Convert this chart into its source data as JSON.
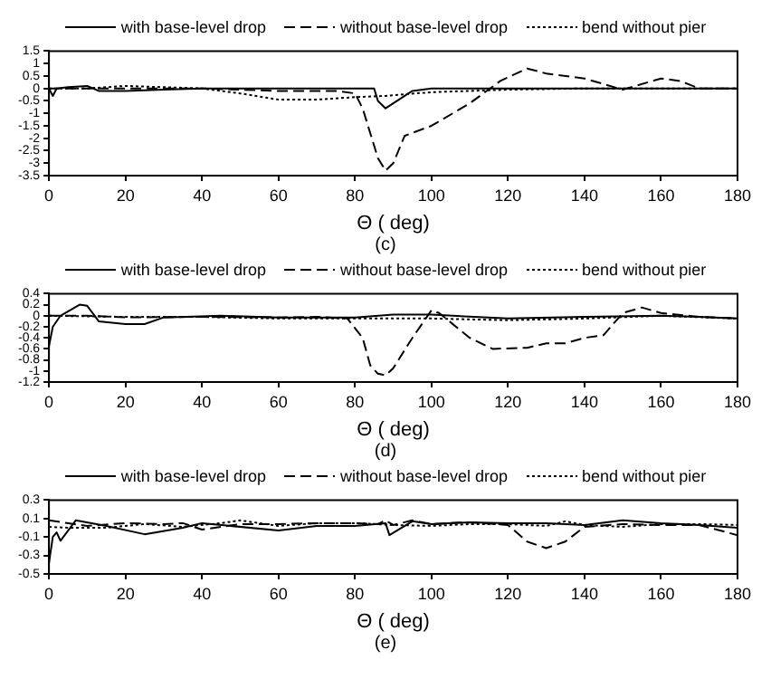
{
  "chart_data": [
    {
      "type": "line",
      "xlabel": "Θ ( deg)",
      "annotations": [
        "(c)"
      ],
      "legend": "top",
      "grid": false,
      "marker": "none",
      "xlim": [
        0,
        180
      ],
      "xticks": [
        0,
        20,
        40,
        60,
        80,
        100,
        120,
        140,
        160,
        180
      ],
      "ylim": [
        -3.5,
        1.5
      ],
      "yticks": [
        -3.5,
        -3,
        -2.5,
        -2,
        -1.5,
        -1,
        -0.5,
        0,
        0.5,
        1,
        1.5
      ],
      "series": [
        {
          "name": "with base-level drop",
          "color": "#000000",
          "line_style": "solid",
          "x": [
            0,
            1,
            2,
            5,
            10,
            13,
            20,
            30,
            40,
            60,
            80,
            85,
            86,
            88,
            92,
            95,
            100,
            120,
            180
          ],
          "values": [
            0,
            -0.3,
            0,
            0.05,
            0.1,
            -0.1,
            -0.1,
            -0.05,
            0,
            0,
            0,
            0,
            -0.5,
            -0.8,
            -0.4,
            -0.1,
            0,
            0,
            0
          ]
        },
        {
          "name": "without base-level drop",
          "color": "#000000",
          "line_style": "dashed",
          "x": [
            0,
            10,
            40,
            60,
            75,
            80,
            82,
            84,
            86,
            88,
            90,
            93,
            100,
            110,
            118,
            125,
            130,
            140,
            150,
            160,
            165,
            170,
            180
          ],
          "values": [
            0,
            0,
            0,
            -0.1,
            -0.1,
            -0.2,
            -0.8,
            -1.8,
            -2.8,
            -3.3,
            -3,
            -1.9,
            -1.5,
            -0.6,
            0.3,
            0.8,
            0.6,
            0.4,
            -0.05,
            0.4,
            0.3,
            0,
            0
          ]
        },
        {
          "name": "bend without pier",
          "color": "#000000",
          "line_style": "dotted",
          "x": [
            0,
            10,
            20,
            40,
            50,
            60,
            70,
            80,
            88,
            100,
            110,
            120,
            140,
            180
          ],
          "values": [
            0,
            0,
            0.1,
            0,
            -0.2,
            -0.45,
            -0.45,
            -0.35,
            -0.3,
            -0.15,
            -0.1,
            -0.05,
            0,
            0
          ]
        }
      ]
    },
    {
      "type": "line",
      "xlabel": "Θ ( deg)",
      "annotations": [
        "(d)"
      ],
      "legend": "top",
      "grid": false,
      "marker": "none",
      "xlim": [
        0,
        180
      ],
      "xticks": [
        0,
        20,
        40,
        60,
        80,
        100,
        120,
        140,
        160,
        180
      ],
      "ylim": [
        -1.2,
        0.4
      ],
      "yticks": [
        -1.2,
        -1,
        -0.8,
        -0.6,
        -0.4,
        -0.2,
        0,
        0.2,
        0.4
      ],
      "series": [
        {
          "name": "with base-level drop",
          "color": "#000000",
          "line_style": "solid",
          "x": [
            0,
            1,
            3,
            8,
            10,
            13,
            20,
            25,
            30,
            45,
            60,
            80,
            90,
            100,
            120,
            140,
            160,
            170,
            180
          ],
          "values": [
            -0.55,
            -0.2,
            0,
            0.2,
            0.18,
            -0.1,
            -0.15,
            -0.15,
            -0.03,
            0,
            -0.03,
            -0.03,
            0.02,
            0.02,
            -0.05,
            -0.02,
            0,
            -0.02,
            -0.05
          ]
        },
        {
          "name": "without base-level drop",
          "color": "#000000",
          "line_style": "dashed",
          "x": [
            0,
            10,
            20,
            40,
            60,
            70,
            78,
            82,
            84,
            86,
            88,
            90,
            95,
            100,
            102,
            110,
            116,
            125,
            130,
            135,
            140,
            145,
            150,
            155,
            160,
            170,
            180
          ],
          "values": [
            0,
            0,
            -0.03,
            -0.02,
            -0.03,
            -0.02,
            -0.05,
            -0.4,
            -0.9,
            -1.05,
            -1.08,
            -0.95,
            -0.4,
            0.1,
            0.05,
            -0.4,
            -0.6,
            -0.58,
            -0.5,
            -0.5,
            -0.4,
            -0.35,
            0.05,
            0.15,
            0.05,
            -0.02,
            -0.05
          ]
        },
        {
          "name": "bend without pier",
          "color": "#000000",
          "line_style": "dotted",
          "x": [
            0,
            20,
            40,
            60,
            80,
            90,
            100,
            120,
            140,
            160,
            180
          ],
          "values": [
            0,
            -0.02,
            -0.02,
            -0.05,
            -0.05,
            -0.05,
            -0.05,
            -0.08,
            -0.05,
            0,
            -0.05
          ]
        }
      ]
    },
    {
      "type": "line",
      "xlabel": "Θ ( deg)",
      "annotations": [
        "(e)"
      ],
      "legend": "top",
      "grid": false,
      "marker": "none",
      "xlim": [
        0,
        180
      ],
      "xticks": [
        0,
        20,
        40,
        60,
        80,
        100,
        120,
        140,
        160,
        180
      ],
      "ylim": [
        -0.5,
        0.3
      ],
      "yticks": [
        -0.5,
        -0.3,
        -0.1,
        0.1,
        0.3
      ],
      "series": [
        {
          "name": "with base-level drop",
          "color": "#000000",
          "line_style": "solid",
          "x": [
            0,
            1,
            2,
            3,
            7,
            15,
            25,
            35,
            40,
            60,
            70,
            80,
            88,
            89,
            95,
            100,
            110,
            120,
            130,
            140,
            150,
            160,
            170,
            180
          ],
          "values": [
            -0.38,
            -0.1,
            -0.05,
            -0.14,
            0.08,
            0.02,
            -0.07,
            0,
            0.05,
            -0.03,
            0.02,
            0.02,
            0.05,
            -0.08,
            0.07,
            0.04,
            0.06,
            0.05,
            0.05,
            0.03,
            0.08,
            0.05,
            0.03,
            0
          ]
        },
        {
          "name": "without base-level drop",
          "color": "#000000",
          "line_style": "dashed",
          "x": [
            0,
            10,
            20,
            30,
            35,
            40,
            50,
            60,
            70,
            80,
            86,
            88,
            90,
            95,
            100,
            110,
            120,
            125,
            130,
            135,
            140,
            150,
            160,
            170,
            180
          ],
          "values": [
            0.08,
            0.02,
            0.05,
            0.04,
            0.05,
            -0.02,
            0.04,
            0.04,
            0.05,
            0.05,
            0.04,
            0.08,
            0.03,
            0.08,
            0.04,
            0.06,
            0.03,
            -0.15,
            -0.22,
            -0.15,
            0.01,
            0.04,
            0.03,
            0.03,
            -0.08
          ]
        },
        {
          "name": "bend without pier",
          "color": "#000000",
          "line_style": "dotted",
          "x": [
            0,
            5,
            15,
            25,
            35,
            45,
            50,
            60,
            70,
            80,
            90,
            100,
            110,
            120,
            130,
            135,
            140,
            150,
            160,
            170,
            180
          ],
          "values": [
            0.01,
            0,
            0,
            0.04,
            0.01,
            0.05,
            0.08,
            0.02,
            0.05,
            0.05,
            0.03,
            0.02,
            0.04,
            0.04,
            0.02,
            0.07,
            0.03,
            0.01,
            0.04,
            0.04,
            0.03
          ]
        }
      ]
    }
  ]
}
